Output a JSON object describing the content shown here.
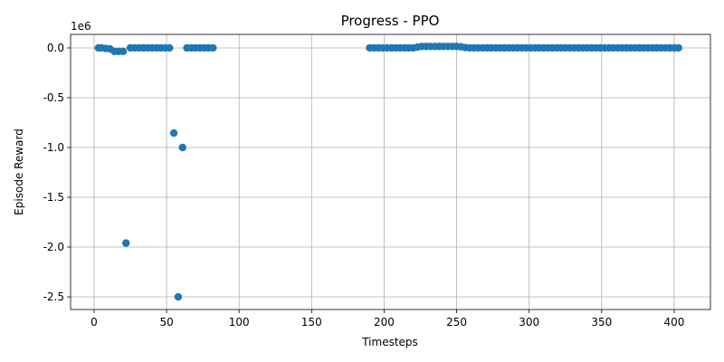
{
  "chart_data": {
    "type": "scatter",
    "title": "Progress - PPO",
    "x_label": "Timesteps",
    "y_label": "Episode Reward",
    "y_offset_label": "1e6",
    "series": [
      {
        "color": "#1f77b4",
        "x": [
          3,
          5,
          8,
          11,
          14,
          17,
          20,
          22,
          25,
          28,
          31,
          34,
          37,
          40,
          43,
          46,
          49,
          52,
          55,
          58,
          61,
          64,
          67,
          70,
          73,
          76,
          79,
          82,
          190,
          193,
          196,
          199,
          202,
          205,
          208,
          211,
          214,
          217,
          220,
          223,
          226,
          229,
          232,
          235,
          238,
          241,
          244,
          247,
          250,
          253,
          256,
          259,
          262,
          265,
          268,
          271,
          274,
          277,
          280,
          283,
          286,
          289,
          292,
          295,
          298,
          301,
          304,
          307,
          310,
          313,
          316,
          319,
          322,
          325,
          328,
          331,
          334,
          337,
          340,
          343,
          346,
          349,
          352,
          355,
          358,
          361,
          364,
          367,
          370,
          373,
          376,
          379,
          382,
          385,
          388,
          391,
          394,
          397,
          400,
          403
        ],
        "values": [
          0,
          0,
          -0.005,
          -0.01,
          -0.035,
          -0.035,
          -0.035,
          -1.96,
          0,
          0,
          0,
          0,
          0,
          0,
          0,
          0,
          0,
          0,
          -0.855,
          -2.5,
          -1.0,
          0,
          0,
          0,
          0,
          0,
          0,
          0,
          0,
          0,
          0,
          0,
          0,
          0,
          0,
          0,
          0,
          0,
          0,
          0.008,
          0.015,
          0.015,
          0.015,
          0.015,
          0.015,
          0.015,
          0.015,
          0.015,
          0.015,
          0.012,
          0.004,
          0,
          0,
          0,
          0,
          0,
          0,
          0,
          0,
          0,
          0,
          0,
          0,
          0,
          0,
          0,
          0,
          0,
          0,
          0,
          0,
          0,
          0,
          0,
          0,
          0,
          0,
          0,
          0,
          0,
          0,
          0,
          0,
          0,
          0,
          0,
          0,
          0,
          0,
          0,
          0,
          0,
          0,
          0,
          0,
          0,
          0,
          0,
          0,
          0
        ]
      }
    ],
    "xlim": [
      -16.2,
      425
    ],
    "xticks": [
      0,
      50,
      100,
      150,
      200,
      250,
      300,
      350,
      400
    ],
    "ylim": [
      -2.627,
      0.136
    ],
    "yticks": [
      {
        "value": 0,
        "label": "0.0"
      },
      -0.5,
      {
        "value": -1,
        "label": "-1.0"
      },
      -1.5,
      {
        "value": -2,
        "label": "-2.0"
      },
      -2.5
    ],
    "grid": true
  }
}
